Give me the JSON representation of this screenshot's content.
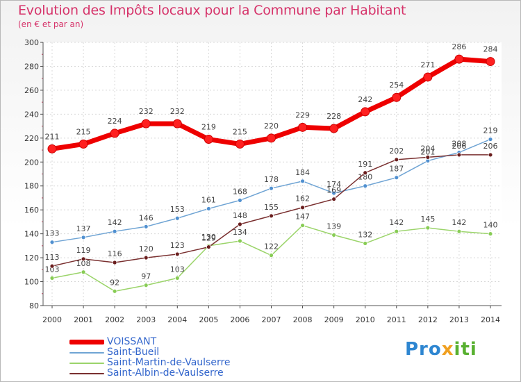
{
  "title": "Evolution des Impôts locaux pour la Commune par Habitant",
  "subtitle": "(en € et par an)",
  "logo": {
    "p1": "Pro",
    "p2": "x",
    "p3": "iti"
  },
  "chart_data": {
    "type": "line",
    "title": "Evolution des Impôts locaux pour la Commune par Habitant",
    "subtitle": "(en € et par an)",
    "xlabel": "",
    "ylabel": "",
    "x": [
      "2000",
      "2001",
      "2002",
      "2003",
      "2004",
      "2005",
      "2006",
      "2007",
      "2008",
      "2009",
      "2010",
      "2011",
      "2012",
      "2013",
      "2014"
    ],
    "yticks": [
      "80",
      "100",
      "120",
      "140",
      "160",
      "180",
      "200",
      "220",
      "240",
      "260",
      "280",
      "300"
    ],
    "ylim": [
      80,
      300
    ],
    "grid": true,
    "legend_position": "bottom-left",
    "series": [
      {
        "name": "VOISSANT",
        "color": "#ee0000",
        "point_color": "#ff2020",
        "values": [
          211,
          215,
          224,
          232,
          232,
          219,
          215,
          220,
          229,
          228,
          242,
          254,
          271,
          286,
          284
        ]
      },
      {
        "name": "Saint-Bueil",
        "color": "#6fa4d4",
        "point_color": "#5090d0",
        "values": [
          133,
          137,
          142,
          146,
          153,
          161,
          168,
          178,
          184,
          174,
          180,
          187,
          201,
          208,
          219
        ]
      },
      {
        "name": "Saint-Martin-de-Vaulserre",
        "color": "#9bd46a",
        "point_color": "#88cc55",
        "values": [
          103,
          108,
          92,
          97,
          103,
          130,
          134,
          122,
          147,
          139,
          132,
          142,
          145,
          142,
          140
        ]
      },
      {
        "name": "Saint-Albin-de-Vaulserre",
        "color": "#7a3030",
        "point_color": "#6a1e1e",
        "values": [
          113,
          119,
          116,
          120,
          123,
          129,
          148,
          155,
          162,
          169,
          191,
          202,
          204,
          206,
          206
        ]
      }
    ]
  }
}
